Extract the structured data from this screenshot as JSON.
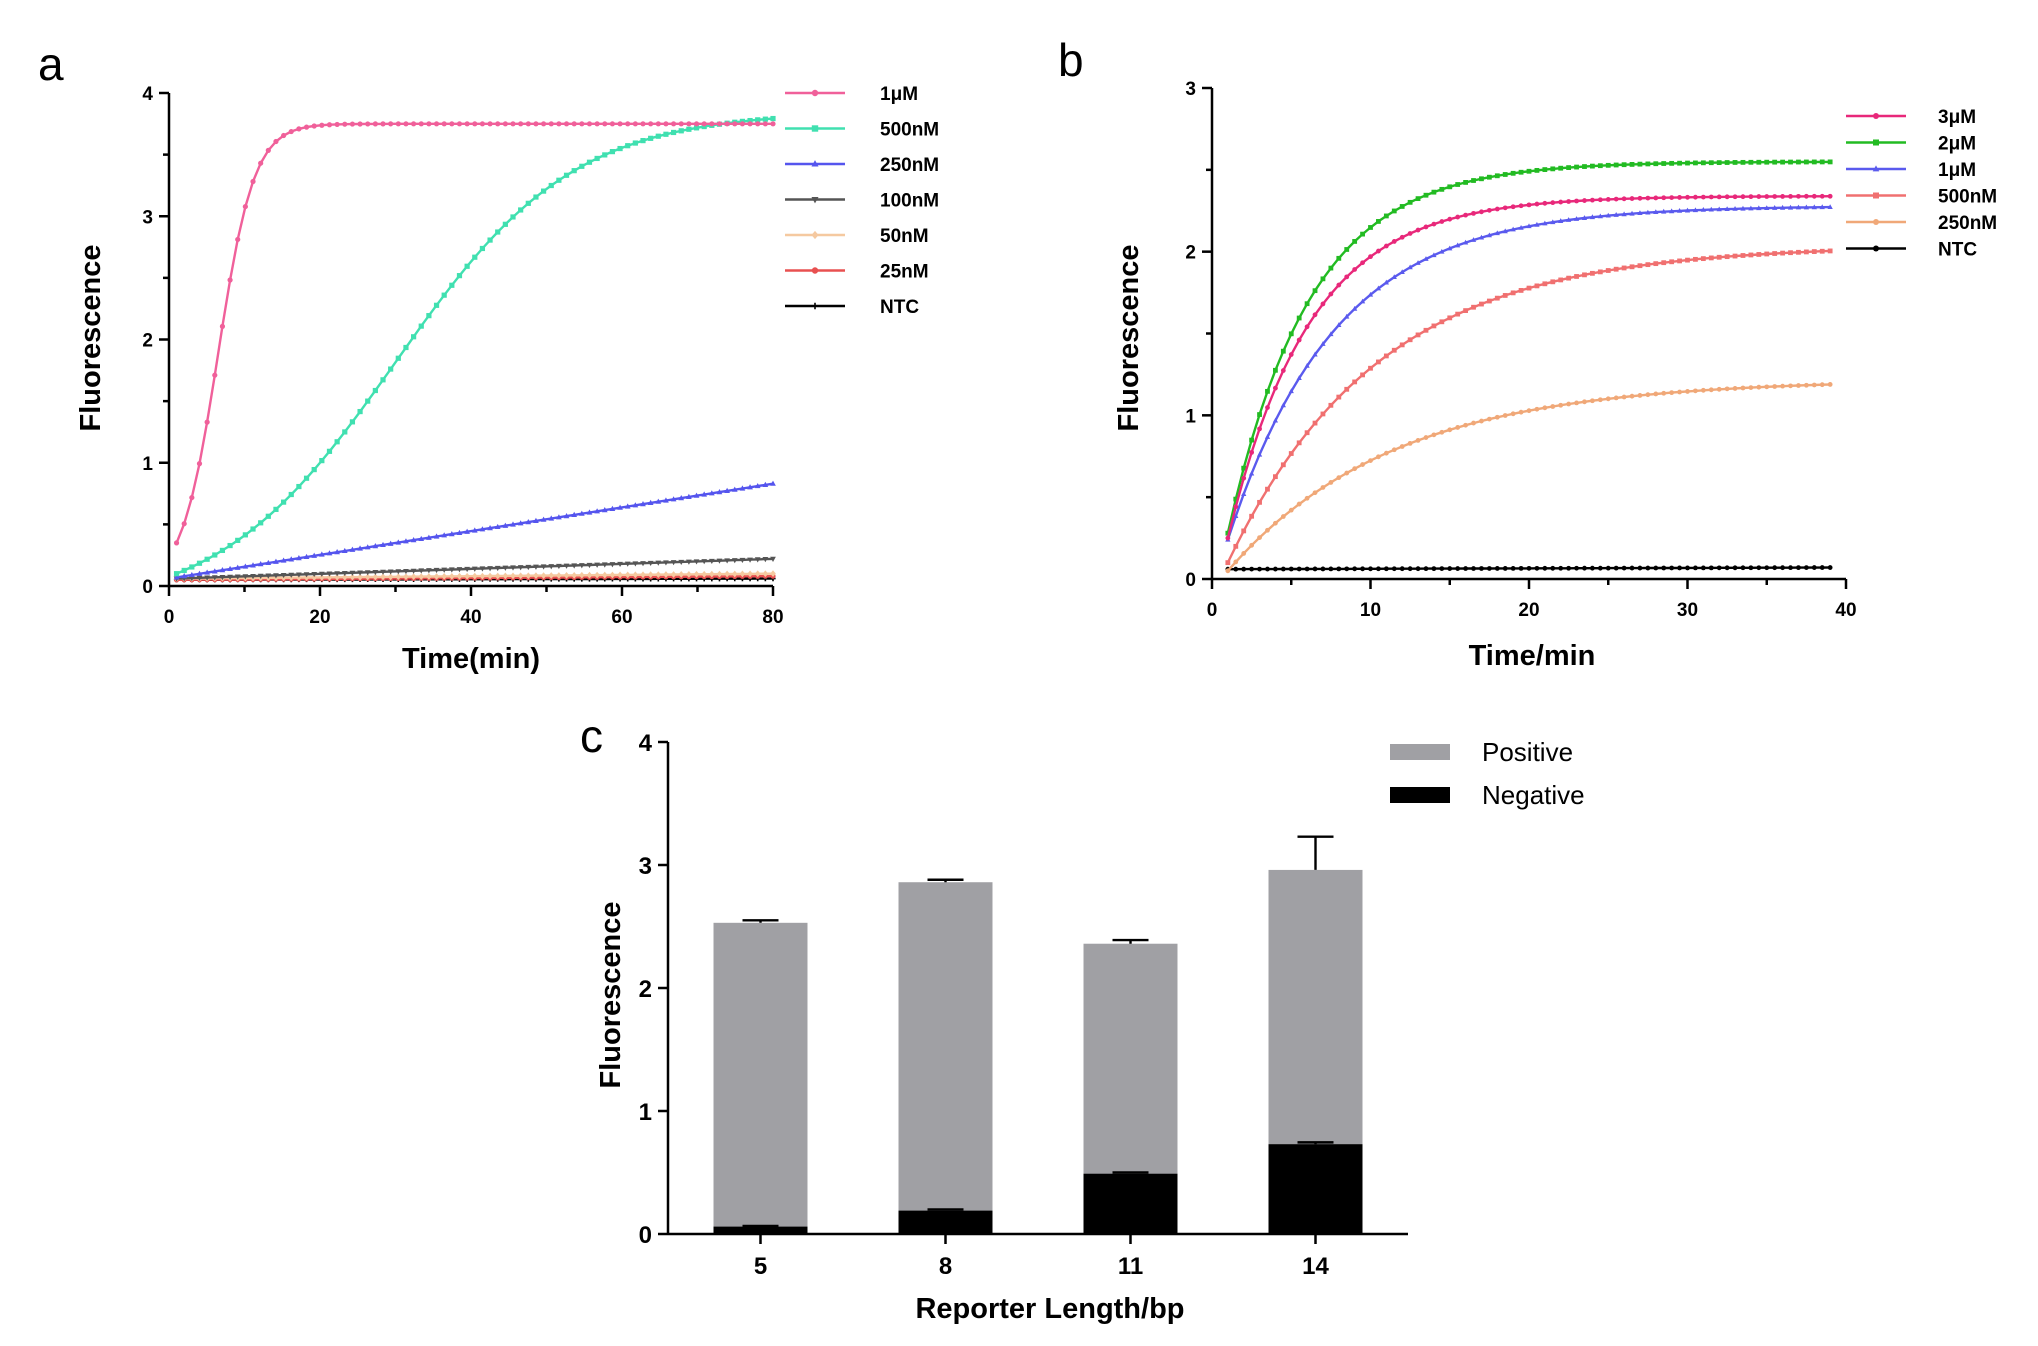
{
  "chart_data": [
    {
      "panel": "a",
      "type": "line",
      "xlabel": "Time(min)",
      "ylabel": "Fluorescence",
      "xlim": [
        0,
        80
      ],
      "ylim": [
        0,
        4
      ],
      "xticks": [
        0,
        20,
        40,
        60,
        80
      ],
      "yticks": [
        0,
        1,
        2,
        3,
        4
      ],
      "legend_position": "right",
      "x": [
        1,
        80
      ],
      "series": [
        {
          "name": "1μM",
          "color": "#f0609a",
          "marker": "circle",
          "kind": "sigmoid",
          "y0": 0.35,
          "ymax": 3.75,
          "k": 0.42,
          "t0": 6.5
        },
        {
          "name": "500nM",
          "color": "#40e0b0",
          "marker": "square",
          "kind": "sigmoid",
          "y0": 0.1,
          "ymax": 3.85,
          "k": 0.085,
          "t0": 30
        },
        {
          "name": "250nM",
          "color": "#5555ee",
          "marker": "triangle",
          "kind": "linear",
          "y0": 0.07,
          "y1": 0.83
        },
        {
          "name": "100nM",
          "color": "#555555",
          "marker": "triangle-down",
          "kind": "linear",
          "y0": 0.06,
          "y1": 0.22
        },
        {
          "name": "50nM",
          "color": "#f5c9a0",
          "marker": "diamond",
          "kind": "linear",
          "y0": 0.06,
          "y1": 0.1
        },
        {
          "name": "25nM",
          "color": "#e85050",
          "marker": "circle",
          "kind": "linear",
          "y0": 0.05,
          "y1": 0.08
        },
        {
          "name": "NTC",
          "color": "#000000",
          "marker": "plus",
          "kind": "linear",
          "y0": 0.05,
          "y1": 0.06
        }
      ]
    },
    {
      "panel": "b",
      "type": "line",
      "xlabel": "Time/min",
      "ylabel": "Fluorescence",
      "xlim": [
        0,
        40
      ],
      "ylim": [
        0,
        3
      ],
      "xticks": [
        0,
        10,
        20,
        30,
        40
      ],
      "yticks": [
        0,
        1,
        2,
        3
      ],
      "legend_position": "right",
      "x": [
        1,
        39
      ],
      "series": [
        {
          "name": "3μM",
          "color": "#e8287a",
          "marker": "circle",
          "kind": "exp",
          "y0": 0.25,
          "ymax": 2.34,
          "tau": 5.2
        },
        {
          "name": "2μM",
          "color": "#22bb22",
          "marker": "square",
          "kind": "exp",
          "y0": 0.28,
          "ymax": 2.55,
          "tau": 5.2
        },
        {
          "name": "1μM",
          "color": "#5a5aee",
          "marker": "triangle",
          "kind": "exp",
          "y0": 0.24,
          "ymax": 2.28,
          "tau": 6.8
        },
        {
          "name": "500nM",
          "color": "#f07070",
          "marker": "square",
          "kind": "exp",
          "y0": 0.1,
          "ymax": 2.04,
          "tau": 9.5
        },
        {
          "name": "250nM",
          "color": "#f0a878",
          "marker": "circle",
          "kind": "exp",
          "y0": 0.05,
          "ymax": 1.22,
          "tau": 10.5
        },
        {
          "name": "NTC",
          "color": "#000000",
          "marker": "circle",
          "kind": "linear",
          "y0": 0.06,
          "y1": 0.07
        }
      ]
    },
    {
      "panel": "c",
      "type": "bar",
      "stacked": false,
      "xlabel": "Reporter Length/bp",
      "ylabel": "Fluorescence",
      "ylim": [
        0,
        4
      ],
      "yticks": [
        0,
        1,
        2,
        3,
        4
      ],
      "categories": [
        "5",
        "8",
        "11",
        "14"
      ],
      "legend_position": "top-right",
      "series": [
        {
          "name": "Positive",
          "color": "#a0a0a4",
          "values": [
            2.53,
            2.86,
            2.36,
            2.96
          ],
          "errors": [
            0.02,
            0.02,
            0.03,
            0.27
          ]
        },
        {
          "name": "Negative",
          "color": "#000000",
          "values": [
            0.06,
            0.19,
            0.49,
            0.73
          ],
          "errors": [
            0.005,
            0.01,
            0.01,
            0.015
          ]
        }
      ]
    }
  ]
}
